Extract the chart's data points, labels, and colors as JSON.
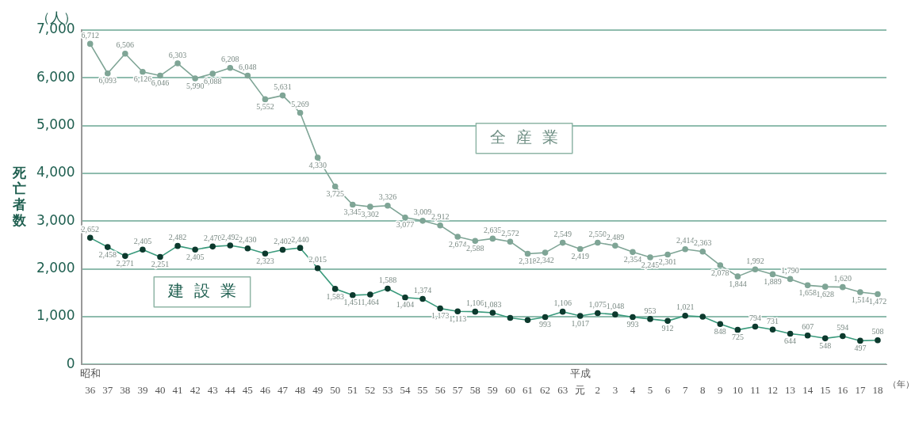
{
  "chart_data": {
    "type": "line",
    "ylabel": "死亡者数",
    "categories": [
      "36",
      "37",
      "38",
      "39",
      "40",
      "41",
      "42",
      "43",
      "44",
      "45",
      "46",
      "47",
      "48",
      "49",
      "50",
      "51",
      "52",
      "53",
      "54",
      "55",
      "56",
      "57",
      "58",
      "59",
      "60",
      "61",
      "62",
      "63",
      "元",
      "2",
      "3",
      "4",
      "5",
      "6",
      "7",
      "8",
      "9",
      "10",
      "11",
      "12",
      "13",
      "14",
      "15",
      "16",
      "17",
      "18"
    ],
    "series": [
      {
        "name": "全産業",
        "color": "#7fa596",
        "values": [
          6712,
          6093,
          6506,
          6126,
          6046,
          6303,
          5990,
          6088,
          6208,
          6048,
          5552,
          5631,
          5269,
          4330,
          3725,
          3345,
          3302,
          3326,
          3077,
          3009,
          2912,
          2674,
          2588,
          2635,
          2572,
          2318,
          2342,
          2549,
          2419,
          2550,
          2489,
          2354,
          2245,
          2301,
          2414,
          2363,
          2078,
          1844,
          1992,
          1889,
          1790,
          1658,
          1628,
          1620,
          1514,
          1472
        ],
        "value_labels": [
          "6,712",
          "6,093",
          "6,506",
          "6,126",
          "6,046",
          "6,303",
          "5,990",
          "6,088",
          "6,208",
          "6,048",
          "5,552",
          "5,631",
          "5,269",
          "4,330",
          "3,725",
          "3,345",
          "3,302",
          "3,326",
          "3,077",
          "3,009",
          "2,912",
          "2,674",
          "2,588",
          "2,635",
          "2,572",
          "2,318",
          "2,342",
          "2,549",
          "2,419",
          "2,550",
          "2,489",
          "2,354",
          "2,245",
          "2,301",
          "2,414",
          "2,363",
          "2,078",
          "1,844",
          "1,992",
          "1,889",
          "1,790",
          "1,658",
          "1,628",
          "1,620",
          "1,514",
          "1,472"
        ]
      },
      {
        "name": "建設業",
        "color": "#3a9a7c",
        "values": [
          2652,
          2458,
          2271,
          2405,
          2251,
          2482,
          2405,
          2470,
          2492,
          2430,
          2323,
          2402,
          2440,
          2015,
          1583,
          1451,
          1464,
          1588,
          1404,
          1374,
          1173,
          1113,
          1106,
          1083,
          975,
          930,
          993,
          1106,
          1017,
          1075,
          1048,
          993,
          953,
          912,
          1021,
          1001,
          848,
          725,
          794,
          731,
          644,
          607,
          548,
          594,
          497,
          508
        ],
        "value_labels": [
          "2,652",
          "2,458",
          "2,271",
          "2,405",
          "2,251",
          "2,482",
          "2,405",
          "2,470",
          "2,492",
          "2,430",
          "2,323",
          "2,402",
          "2,440",
          "2,015",
          "1,583",
          "1,451",
          "1,464",
          "1,588",
          "1,404",
          "1,374",
          "1,173",
          "1,113",
          "1,106",
          "1,083",
          null,
          null,
          "993",
          "1,106",
          "1,017",
          "1,075",
          "1,048",
          "993",
          "953",
          "912",
          "1,021",
          null,
          "848",
          "725",
          "794",
          "731",
          "644",
          "607",
          "548",
          "594",
          "497",
          "508"
        ]
      }
    ],
    "ylim": [
      0,
      7000
    ],
    "yticks": [
      0,
      {
        "value": 1000,
        "label": "1,000"
      },
      {
        "value": 2000,
        "label": "2,000"
      },
      {
        "value": 3000,
        "label": "3,000"
      },
      {
        "value": 4000,
        "label": "4,000"
      },
      {
        "value": 5000,
        "label": "5,000"
      },
      {
        "value": 6000,
        "label": "6,000"
      },
      {
        "value": 7000,
        "label": "7,000"
      }
    ],
    "grid": "y",
    "legend": false,
    "marker": "circle",
    "line_style": "solid",
    "annotations": [
      "昭和",
      "平成",
      "（年）",
      "（人）"
    ]
  }
}
